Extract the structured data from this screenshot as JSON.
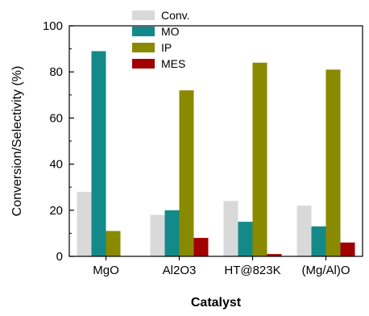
{
  "chart_data": {
    "type": "bar",
    "title": "",
    "xlabel": "Catalyst",
    "ylabel": "Conversion/Selectivity (%)",
    "ylim": [
      0,
      100
    ],
    "yticks": [
      0,
      20,
      40,
      60,
      80,
      100
    ],
    "categories": [
      "MgO",
      "Al2O3",
      "HT@823K",
      "(Mg/Al)O"
    ],
    "series": [
      {
        "name": "Conv.",
        "color": "#d9d9d9",
        "values": [
          28,
          18,
          24,
          22
        ]
      },
      {
        "name": "MO",
        "color": "#138a89",
        "values": [
          89,
          20,
          15,
          13
        ]
      },
      {
        "name": "IP",
        "color": "#8a8a00",
        "values": [
          11,
          72,
          84,
          81
        ]
      },
      {
        "name": "MES",
        "color": "#a00000",
        "values": [
          0,
          8,
          1,
          6
        ]
      }
    ],
    "legend_position": "top-center",
    "grid": false
  }
}
